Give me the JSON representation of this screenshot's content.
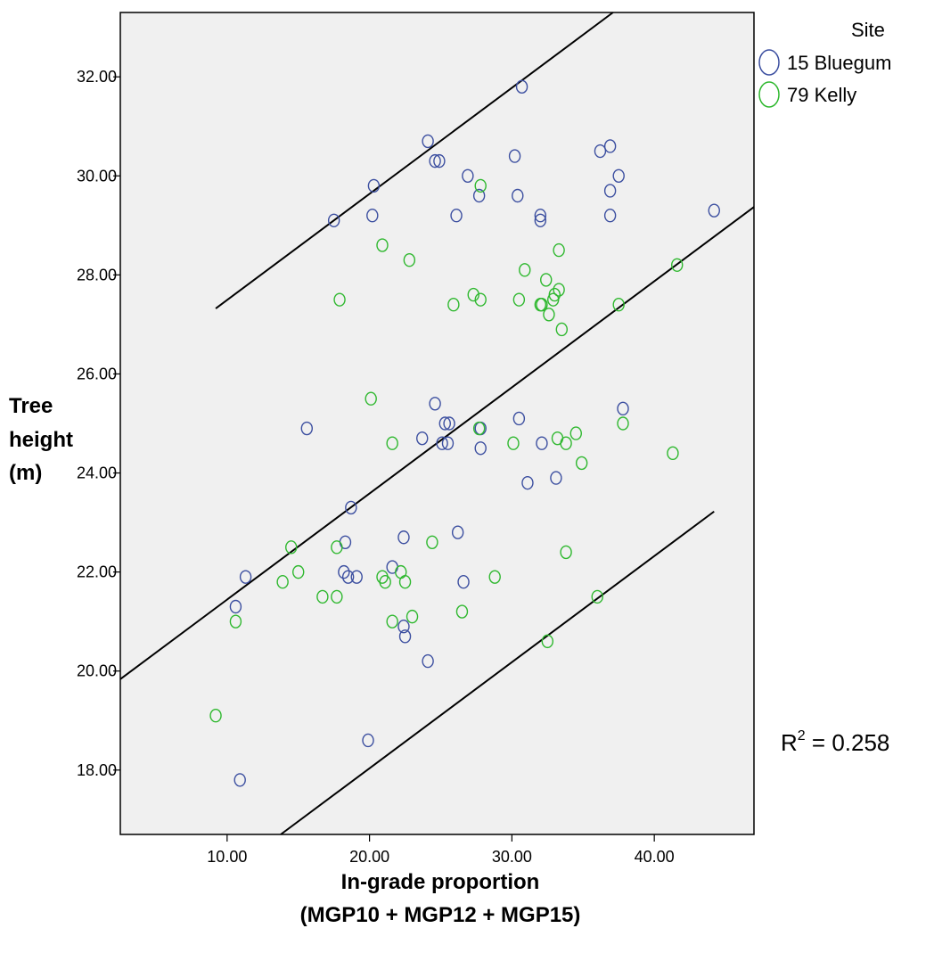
{
  "chart_data": {
    "type": "scatter",
    "xlabel_lines": [
      "In-grade proportion",
      "(MGP10 + MGP12 + MGP15)"
    ],
    "ylabel_lines": [
      "Tree",
      "height",
      "(m)"
    ],
    "xlim": [
      2.5,
      47
    ],
    "ylim": [
      16.7,
      33.3
    ],
    "x_ticks": [
      10,
      20,
      30,
      40
    ],
    "x_tick_labels": [
      "10.00",
      "20.00",
      "30.00",
      "40.00"
    ],
    "y_ticks": [
      18,
      20,
      22,
      24,
      26,
      28,
      30,
      32
    ],
    "y_tick_labels": [
      "18.00",
      "20.00",
      "22.00",
      "24.00",
      "26.00",
      "28.00",
      "30.00",
      "32.00"
    ],
    "grid": false,
    "legend": {
      "title": "Site",
      "placement": "top-right, outside plot",
      "entries": [
        "15 Bluegum",
        "79 Kelly"
      ]
    },
    "annotation": {
      "r2_base": "R",
      "r2_exp": "2",
      "r2_value": " = 0.258"
    },
    "series": [
      {
        "name": "15 Bluegum",
        "color": "#3c4fa0",
        "points": [
          [
            30.7,
            31.8
          ],
          [
            24.1,
            30.7
          ],
          [
            24.6,
            30.3
          ],
          [
            24.9,
            30.3
          ],
          [
            36.9,
            30.6
          ],
          [
            36.2,
            30.5
          ],
          [
            30.2,
            30.4
          ],
          [
            26.9,
            30.0
          ],
          [
            37.5,
            30.0
          ],
          [
            20.3,
            29.8
          ],
          [
            36.9,
            29.7
          ],
          [
            30.4,
            29.6
          ],
          [
            27.7,
            29.6
          ],
          [
            20.2,
            29.2
          ],
          [
            26.1,
            29.2
          ],
          [
            32.0,
            29.2
          ],
          [
            36.9,
            29.2
          ],
          [
            17.5,
            29.1
          ],
          [
            32.0,
            29.1
          ],
          [
            44.2,
            29.3
          ],
          [
            24.6,
            25.4
          ],
          [
            37.8,
            25.3
          ],
          [
            25.3,
            25.0
          ],
          [
            25.6,
            25.0
          ],
          [
            30.5,
            25.1
          ],
          [
            15.6,
            24.9
          ],
          [
            27.8,
            24.9
          ],
          [
            23.7,
            24.7
          ],
          [
            25.1,
            24.6
          ],
          [
            25.5,
            24.6
          ],
          [
            32.1,
            24.6
          ],
          [
            27.8,
            24.5
          ],
          [
            33.1,
            23.9
          ],
          [
            31.1,
            23.8
          ],
          [
            18.7,
            23.3
          ],
          [
            26.2,
            22.8
          ],
          [
            22.4,
            22.7
          ],
          [
            18.3,
            22.6
          ],
          [
            21.6,
            22.1
          ],
          [
            18.2,
            22.0
          ],
          [
            11.3,
            21.9
          ],
          [
            18.5,
            21.9
          ],
          [
            19.1,
            21.9
          ],
          [
            26.6,
            21.8
          ],
          [
            10.6,
            21.3
          ],
          [
            22.4,
            20.9
          ],
          [
            22.5,
            20.7
          ],
          [
            24.1,
            20.2
          ],
          [
            19.9,
            18.6
          ],
          [
            10.9,
            17.8
          ]
        ]
      },
      {
        "name": "79 Kelly",
        "color": "#2fb82f",
        "points": [
          [
            27.8,
            29.8
          ],
          [
            20.9,
            28.6
          ],
          [
            33.3,
            28.5
          ],
          [
            22.8,
            28.3
          ],
          [
            41.6,
            28.2
          ],
          [
            30.9,
            28.1
          ],
          [
            32.4,
            27.9
          ],
          [
            33.3,
            27.7
          ],
          [
            27.3,
            27.6
          ],
          [
            33.0,
            27.6
          ],
          [
            17.9,
            27.5
          ],
          [
            27.8,
            27.5
          ],
          [
            30.5,
            27.5
          ],
          [
            32.9,
            27.5
          ],
          [
            25.9,
            27.4
          ],
          [
            32.0,
            27.4
          ],
          [
            32.1,
            27.4
          ],
          [
            37.5,
            27.4
          ],
          [
            32.6,
            27.2
          ],
          [
            33.5,
            26.9
          ],
          [
            20.1,
            25.5
          ],
          [
            37.8,
            25.0
          ],
          [
            27.7,
            24.9
          ],
          [
            34.5,
            24.8
          ],
          [
            33.2,
            24.7
          ],
          [
            21.6,
            24.6
          ],
          [
            30.1,
            24.6
          ],
          [
            33.8,
            24.6
          ],
          [
            41.3,
            24.4
          ],
          [
            34.9,
            24.2
          ],
          [
            24.4,
            22.6
          ],
          [
            14.5,
            22.5
          ],
          [
            17.7,
            22.5
          ],
          [
            33.8,
            22.4
          ],
          [
            15.0,
            22.0
          ],
          [
            22.2,
            22.0
          ],
          [
            20.9,
            21.9
          ],
          [
            28.8,
            21.9
          ],
          [
            13.9,
            21.8
          ],
          [
            21.1,
            21.8
          ],
          [
            22.5,
            21.8
          ],
          [
            16.7,
            21.5
          ],
          [
            17.7,
            21.5
          ],
          [
            36.0,
            21.5
          ],
          [
            26.5,
            21.2
          ],
          [
            23.0,
            21.1
          ],
          [
            10.6,
            21.0
          ],
          [
            21.6,
            21.0
          ],
          [
            32.5,
            20.6
          ],
          [
            9.2,
            19.1
          ]
        ]
      }
    ],
    "fit_line": {
      "slope": 0.2143,
      "intercept": 19.3,
      "x_range": [
        2.5,
        47
      ]
    },
    "interval_lines": [
      {
        "slope": 0.2143,
        "intercept": 25.35,
        "x_range": [
          9.2,
          43.3
        ]
      },
      {
        "slope": 0.2143,
        "intercept": 13.75,
        "x_range": [
          9.2,
          44.2
        ]
      }
    ]
  }
}
